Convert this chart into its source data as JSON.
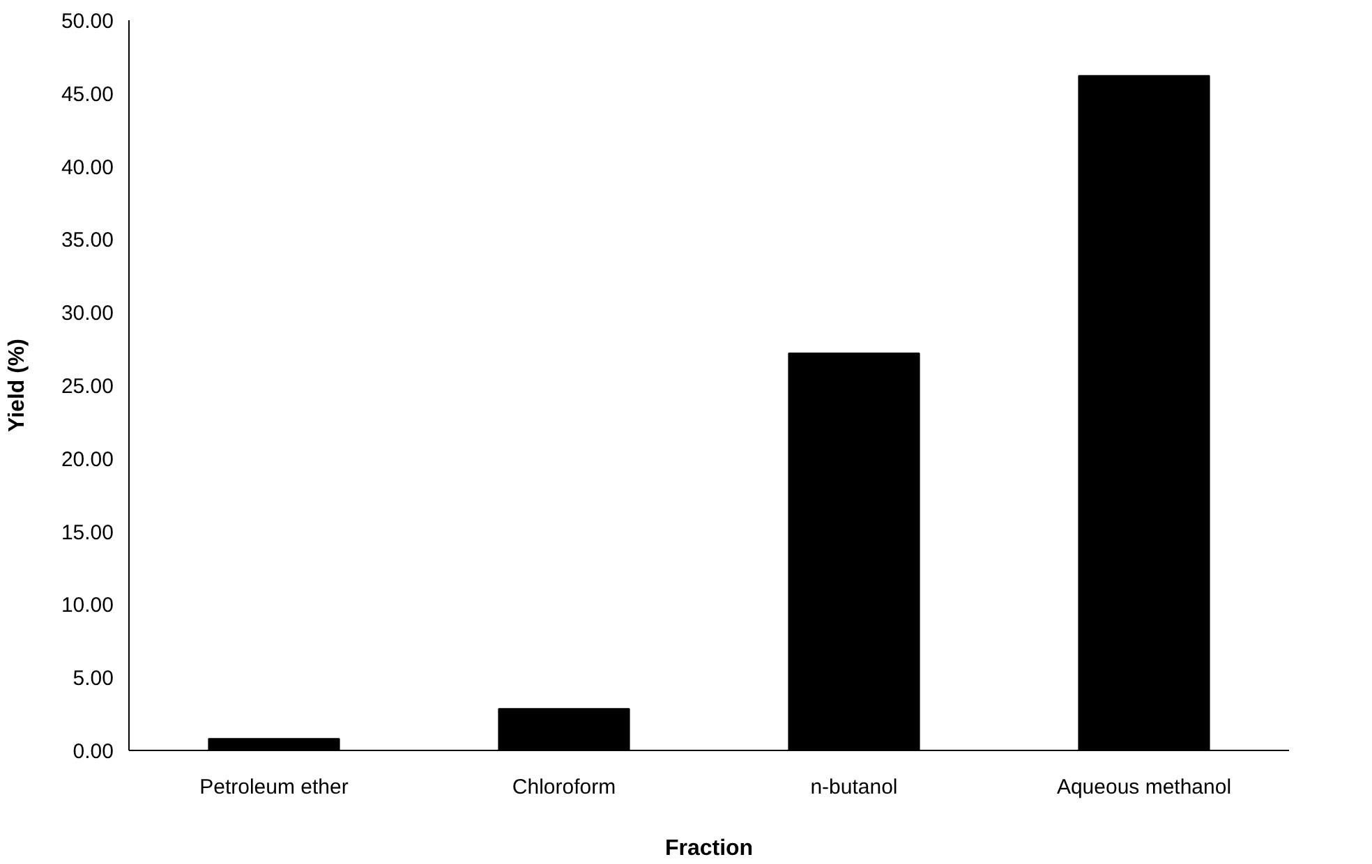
{
  "chart_data": {
    "type": "bar",
    "xlabel": "Fraction",
    "ylabel": "Yield (%)",
    "categories": [
      "Petroleum ether",
      "Chloroform",
      "n-butanol",
      "Aqueous methanol"
    ],
    "values": [
      0.8,
      2.85,
      27.2,
      46.2
    ],
    "color": "#000000",
    "ylim": [
      0,
      50
    ],
    "yticks": [
      {
        "value": 0,
        "label": "0.00"
      },
      {
        "value": 5,
        "label": "5.00"
      },
      {
        "value": 10,
        "label": "10.00"
      },
      {
        "value": 15,
        "label": "15.00"
      },
      {
        "value": 20,
        "label": "20.00"
      },
      {
        "value": 25,
        "label": "25.00"
      },
      {
        "value": 30,
        "label": "30.00"
      },
      {
        "value": 35,
        "label": "35.00"
      },
      {
        "value": 40,
        "label": "40.00"
      },
      {
        "value": 45,
        "label": "45.00"
      },
      {
        "value": 50,
        "label": "50.00"
      }
    ],
    "grid": false
  }
}
